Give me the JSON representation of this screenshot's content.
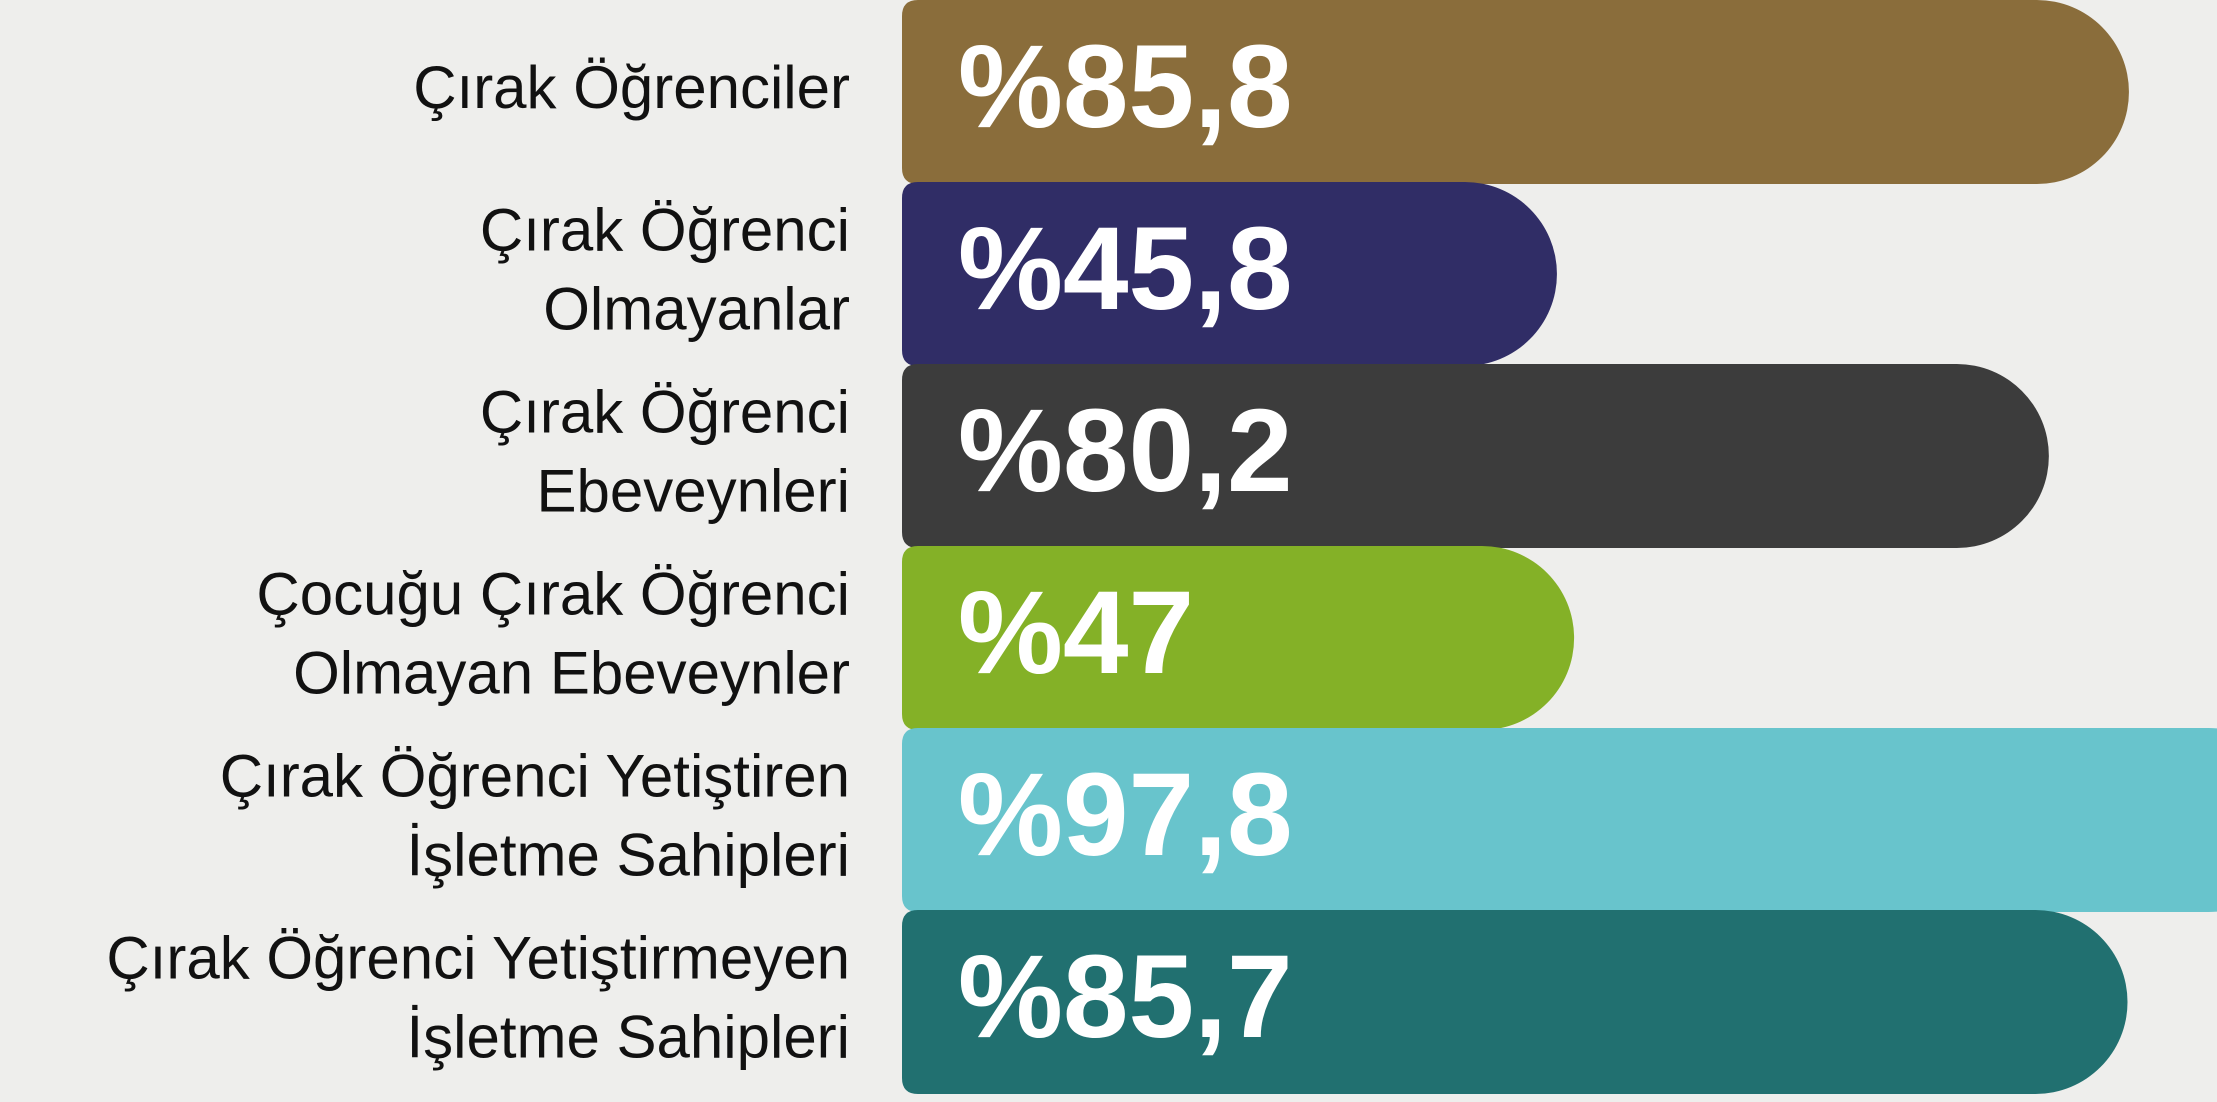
{
  "chart_data": {
    "type": "bar",
    "orientation": "horizontal",
    "categories": [
      [
        "Çırak Öğrenciler"
      ],
      [
        "Çırak Öğrenci",
        "Olmayanlar"
      ],
      [
        "Çırak Öğrenci",
        "Ebeveynleri"
      ],
      [
        "Çocuğu Çırak Öğrenci",
        "Olmayan Ebeveynler"
      ],
      [
        "Çırak Öğrenci Yetiştiren",
        "İşletme Sahipleri"
      ],
      [
        "Çırak Öğrenci Yetiştirmeyen",
        "İşletme Sahipleri"
      ]
    ],
    "values": [
      85.8,
      45.8,
      80.2,
      47,
      97.8,
      85.7
    ],
    "value_labels": [
      "%85,8",
      "%45,8",
      "%80,2",
      "%47",
      "%97,8",
      "%85,7"
    ],
    "colors": [
      "#8a6d3b",
      "#302d66",
      "#3c3c3c",
      "#84b127",
      "#68c4cc",
      "#217070"
    ]
  }
}
